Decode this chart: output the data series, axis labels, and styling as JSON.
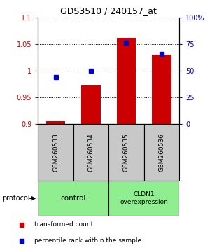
{
  "title": "GDS3510 / 240157_at",
  "samples": [
    "GSM260533",
    "GSM260534",
    "GSM260535",
    "GSM260536"
  ],
  "red_values": [
    0.905,
    0.972,
    1.062,
    1.03
  ],
  "blue_percentiles": [
    44,
    50,
    76,
    66
  ],
  "ymin": 0.9,
  "ymax": 1.1,
  "yticks_red": [
    0.9,
    0.95,
    1.0,
    1.05,
    1.1
  ],
  "ytick_labels_red": [
    "0.9",
    "0.95",
    "1",
    "1.05",
    "1.1"
  ],
  "yticks_blue_pct": [
    0,
    25,
    50,
    75,
    100
  ],
  "ytick_labels_blue": [
    "0",
    "25",
    "50",
    "75",
    "100%"
  ],
  "bar_color": "#CC0000",
  "marker_color": "#0000CC",
  "bar_baseline": 0.9,
  "bar_width": 0.55,
  "sample_box_color": "#C8C8C8",
  "group_box_color": "#90EE90",
  "legend_items": [
    {
      "color": "#CC0000",
      "label": "transformed count"
    },
    {
      "color": "#0000CC",
      "label": "percentile rank within the sample"
    }
  ]
}
